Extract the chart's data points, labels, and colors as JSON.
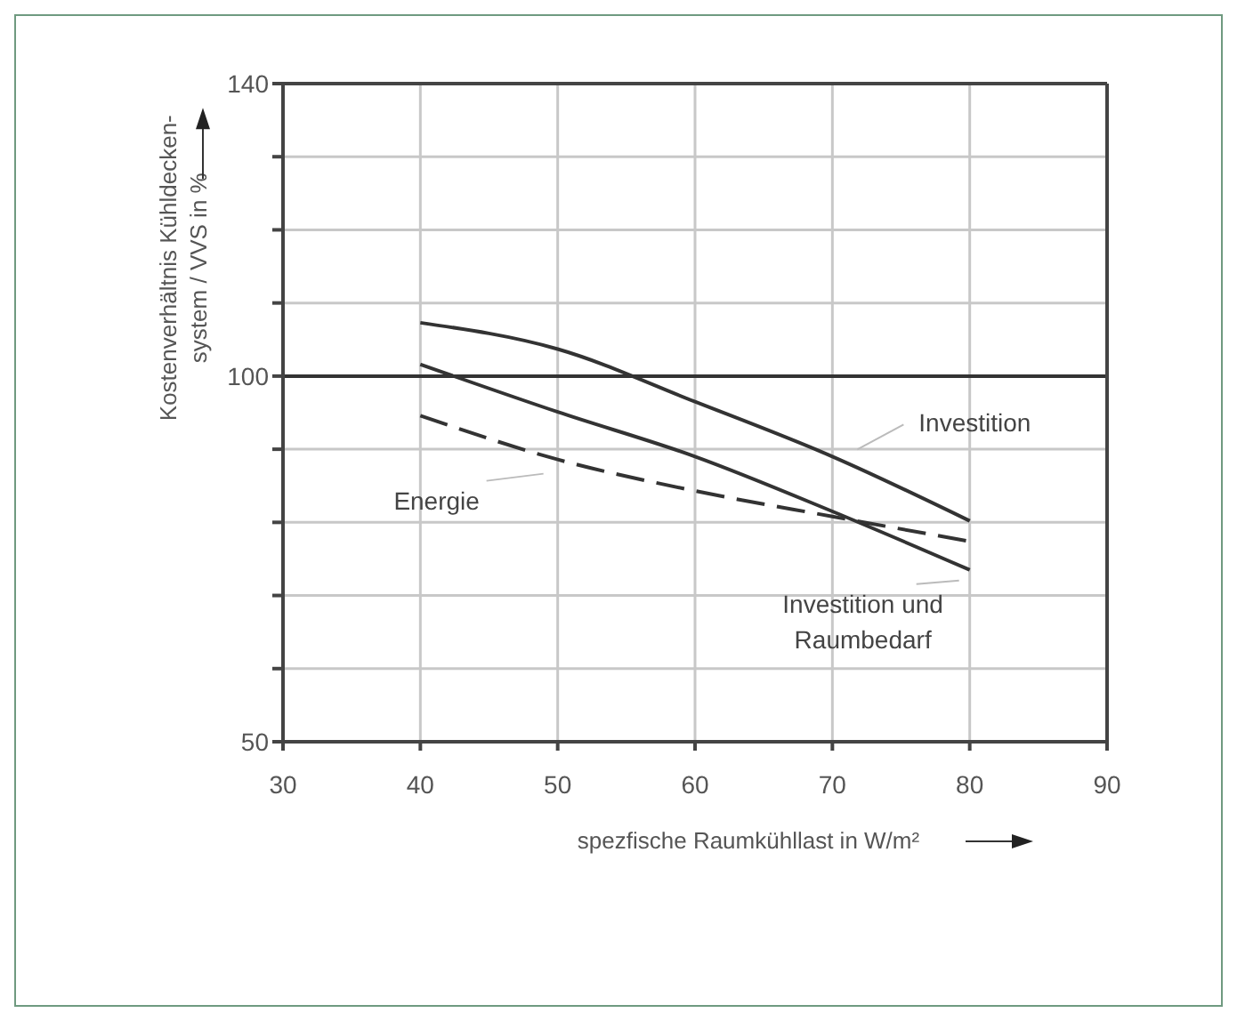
{
  "chart_data": {
    "type": "line",
    "xlabel": "spezfische Raumkühllast in W/m²",
    "ylabel": "Kostenverhältnis Kühldecken-system / VVS in %",
    "x": [
      40,
      50,
      60,
      70,
      80
    ],
    "series": [
      {
        "name": "Investition",
        "color": "#333333",
        "values": [
          107.3,
          103.7,
          96.5,
          89,
          80.2
        ]
      },
      {
        "name": "Investition und Raumbedarf",
        "color": "#333333",
        "values": [
          101.6,
          95.1,
          89,
          81.5,
          73.5
        ]
      },
      {
        "name": "Energie",
        "color": "#333333",
        "values": [
          94.6,
          88.6,
          84.3,
          80.8,
          77.4
        ],
        "line_style": "dashed"
      }
    ],
    "xlim": [
      30,
      90
    ],
    "xticks": [
      30,
      40,
      50,
      60,
      70,
      80,
      90
    ],
    "ylim": [
      50,
      140
    ],
    "yticks": [
      50,
      {
        "value": 60,
        "label": null
      },
      {
        "value": 70,
        "label": null
      },
      {
        "value": 80,
        "label": null
      },
      {
        "value": 90,
        "label": null
      },
      100,
      {
        "value": 110,
        "label": null
      },
      {
        "value": 120,
        "label": null
      },
      {
        "value": 130,
        "label": null
      },
      140
    ],
    "ref_lines": [
      {
        "axis": "y",
        "value": 100,
        "color": "#333333"
      }
    ],
    "grid": true,
    "marker": "none",
    "legend": false
  }
}
